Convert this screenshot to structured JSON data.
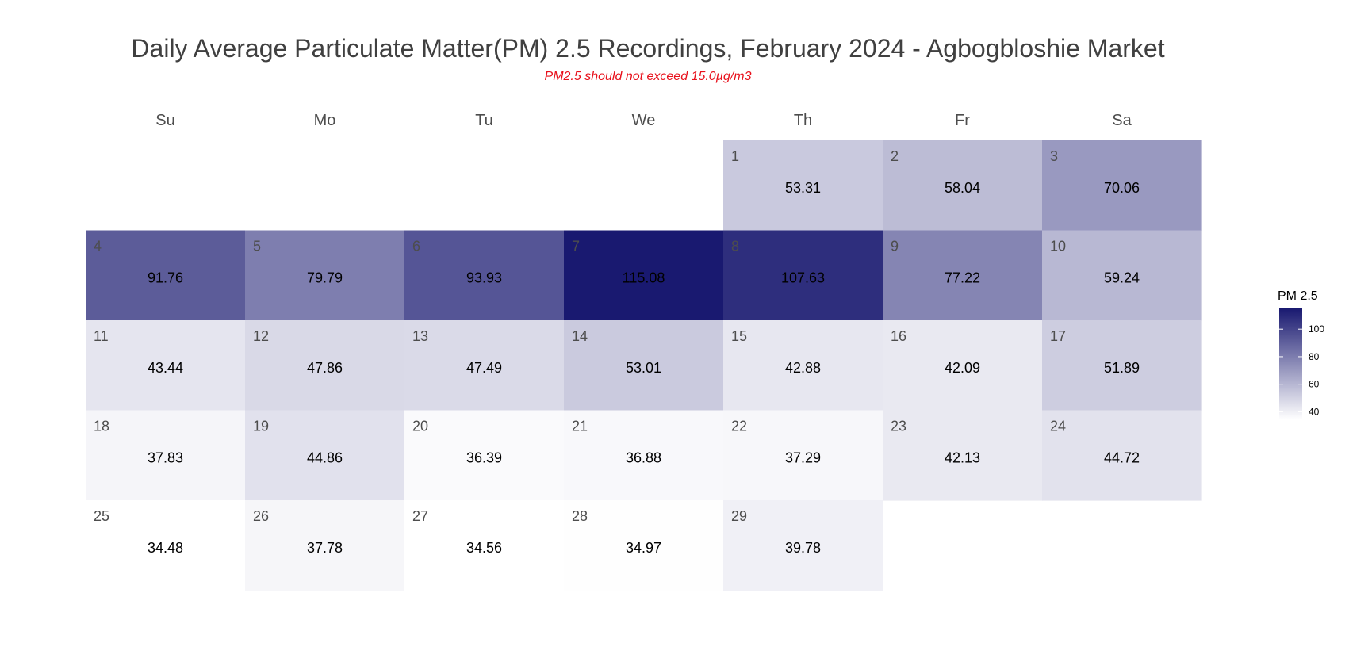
{
  "chart_data": {
    "type": "heatmap",
    "title": "Daily Average Particulate Matter(PM) 2.5 Recordings, February 2024 - Agbogbloshie Market",
    "subtitle": "PM2.5 should not exceed 15.0µg/m3",
    "weekdays": [
      "Su",
      "Mo",
      "Tu",
      "We",
      "Th",
      "Fr",
      "Sa"
    ],
    "first_weekday_index": 4,
    "days": [
      1,
      2,
      3,
      4,
      5,
      6,
      7,
      8,
      9,
      10,
      11,
      12,
      13,
      14,
      15,
      16,
      17,
      18,
      19,
      20,
      21,
      22,
      23,
      24,
      25,
      26,
      27,
      28,
      29
    ],
    "values": [
      "53.31",
      "58.04",
      "70.06",
      "91.76",
      "79.79",
      "93.93",
      "115.08",
      "107.63",
      "77.22",
      "59.24",
      "43.44",
      "47.86",
      "47.49",
      "53.01",
      "42.88",
      "42.09",
      "51.89",
      "37.83",
      "44.86",
      "36.39",
      "36.88",
      "37.29",
      "42.13",
      "44.72",
      "34.48",
      "37.78",
      "34.56",
      "34.97",
      "39.78"
    ],
    "color_scale": {
      "min": 34.48,
      "max": 115.08,
      "low": "#ffffff",
      "high": "#191970"
    },
    "legend": {
      "title": "PM 2.5",
      "ticks": [
        40,
        60,
        80,
        100
      ],
      "placement": "right"
    }
  }
}
